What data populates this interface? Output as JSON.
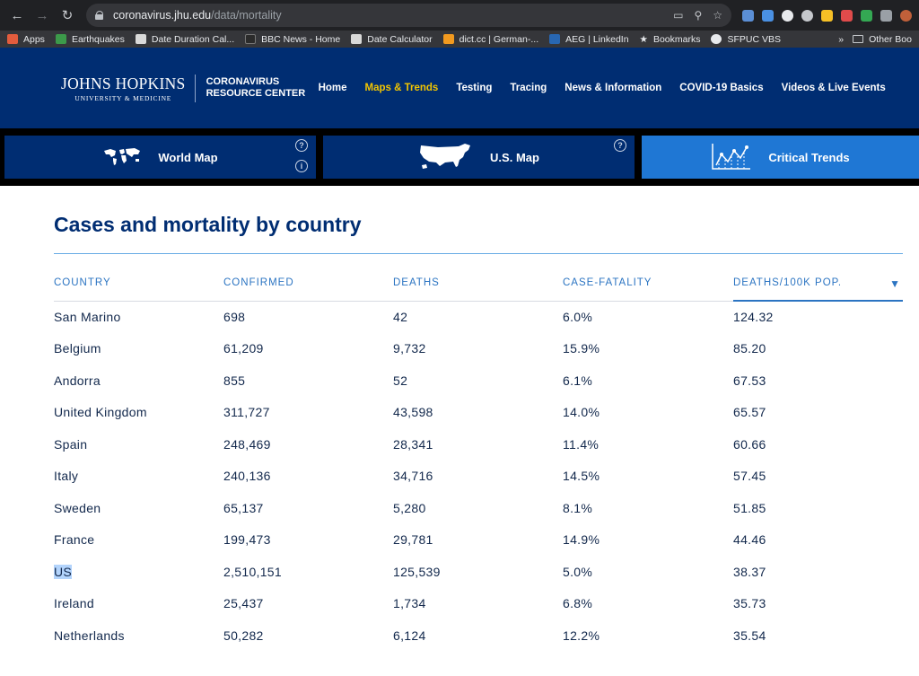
{
  "browser": {
    "url_domain": "coronavirus.jhu.edu",
    "url_path": "/data/mortality",
    "bookmarks": [
      {
        "label": "Apps",
        "color": "#e25c3d"
      },
      {
        "label": "Earthquakes",
        "color": "#3c9a4a"
      },
      {
        "label": "Date Duration Cal...",
        "color": "#d9d9d9"
      },
      {
        "label": "BBC News - Home",
        "color": "#2b2b2b"
      },
      {
        "label": "Date Calculator",
        "color": "#d9d9d9"
      },
      {
        "label": "dict.cc | German-...",
        "color": "#f29a1f"
      },
      {
        "label": "AEG | LinkedIn",
        "color": "#2867b2"
      },
      {
        "label": "Bookmarks",
        "color": "#e8eaed"
      },
      {
        "label": "SFPUC VBS",
        "color": "#e8eaed"
      }
    ],
    "more_label": "»",
    "other_label": "Other Boo"
  },
  "header": {
    "logo_main": "JOHNS HOPKINS",
    "logo_sub": "UNIVERSITY & MEDICINE",
    "crc_line1": "CORONAVIRUS",
    "crc_line2": "RESOURCE CENTER",
    "nav": [
      "Home",
      "Maps & Trends",
      "Testing",
      "Tracing",
      "News & Information",
      "COVID-19 Basics",
      "Videos & Live Events"
    ],
    "active_nav": "Maps & Trends"
  },
  "tabs": {
    "world_map": "World Map",
    "us_map": "U.S. Map",
    "critical_trends": "Critical Trends",
    "help_glyph": "?",
    "info_glyph": "i"
  },
  "page": {
    "title": "Cases and mortality by country"
  },
  "table": {
    "headers": {
      "country": "COUNTRY",
      "confirmed": "CONFIRMED",
      "deaths": "DEATHS",
      "cfr": "CASE-FATALITY",
      "per100k": "DEATHS/100K POP."
    },
    "sort_arrow": "▼",
    "rows": [
      {
        "country": "San Marino",
        "confirmed": "698",
        "deaths": "42",
        "cfr": "6.0%",
        "per100k": "124.32"
      },
      {
        "country": "Belgium",
        "confirmed": "61,209",
        "deaths": "9,732",
        "cfr": "15.9%",
        "per100k": "85.20"
      },
      {
        "country": "Andorra",
        "confirmed": "855",
        "deaths": "52",
        "cfr": "6.1%",
        "per100k": "67.53"
      },
      {
        "country": "United Kingdom",
        "confirmed": "311,727",
        "deaths": "43,598",
        "cfr": "14.0%",
        "per100k": "65.57"
      },
      {
        "country": "Spain",
        "confirmed": "248,469",
        "deaths": "28,341",
        "cfr": "11.4%",
        "per100k": "60.66"
      },
      {
        "country": "Italy",
        "confirmed": "240,136",
        "deaths": "34,716",
        "cfr": "14.5%",
        "per100k": "57.45"
      },
      {
        "country": "Sweden",
        "confirmed": "65,137",
        "deaths": "5,280",
        "cfr": "8.1%",
        "per100k": "51.85"
      },
      {
        "country": "France",
        "confirmed": "199,473",
        "deaths": "29,781",
        "cfr": "14.9%",
        "per100k": "44.46"
      },
      {
        "country": "US",
        "confirmed": "2,510,151",
        "deaths": "125,539",
        "cfr": "5.0%",
        "per100k": "38.37",
        "selected": true
      },
      {
        "country": "Ireland",
        "confirmed": "25,437",
        "deaths": "1,734",
        "cfr": "6.8%",
        "per100k": "35.73"
      },
      {
        "country": "Netherlands",
        "confirmed": "50,282",
        "deaths": "6,124",
        "cfr": "12.2%",
        "per100k": "35.54"
      }
    ]
  }
}
